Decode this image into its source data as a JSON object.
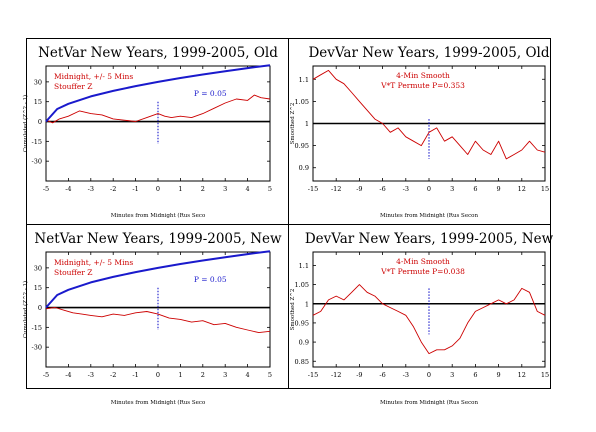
{
  "chart_data": [
    {
      "type": "line",
      "title": "NetVar New Years, 1999-2005, Old",
      "xlabel": "Minutes from Midnight (Rus Seco",
      "ylabel": "Cumulated (Z^2 - 1)",
      "xlim": [
        -5,
        5
      ],
      "ylim": [
        -45,
        42
      ],
      "xticks": [
        -5,
        -4,
        -3,
        -2,
        -1,
        0,
        1,
        2,
        3,
        4,
        5
      ],
      "xtick_labels": [
        "-5",
        "-4",
        "-3",
        "-2",
        "-1",
        "0",
        "1",
        "2",
        "3",
        "4",
        "5"
      ],
      "yticks": [
        30,
        15,
        0,
        -15,
        -30
      ],
      "ytick_labels": [
        "30",
        "15",
        "0",
        "-15",
        "-30"
      ],
      "annotations": [
        "Midnight, +/- 5 Mins",
        "Stouffer Z"
      ],
      "p_label": "P = 0.05",
      "reference_line": 0,
      "marker_x": 0,
      "marker_range": [
        -17,
        15
      ],
      "series": [
        {
          "color": "#cc0000",
          "x": [
            -5,
            -4.7,
            -4.4,
            -4,
            -3.5,
            -3,
            -2.5,
            -2,
            -1.5,
            -1,
            -0.5,
            0,
            0.3,
            0.6,
            1,
            1.5,
            2,
            2.5,
            3,
            3.5,
            4,
            4.3,
            4.6,
            5
          ],
          "y": [
            1,
            -1,
            2,
            4,
            8,
            6,
            5,
            2,
            1,
            0,
            3,
            6,
            4,
            3,
            4,
            3,
            6,
            10,
            14,
            17,
            16,
            20,
            18,
            17
          ]
        },
        {
          "color": "#1a1acc",
          "x": [
            -5,
            -4.5,
            -4,
            -3,
            -2,
            -1,
            0,
            1,
            2,
            3,
            4,
            5
          ],
          "y": [
            0,
            9.5,
            13.4,
            19,
            23.2,
            26.8,
            30,
            32.9,
            35.6,
            38.1,
            40.4,
            42.5
          ]
        }
      ]
    },
    {
      "type": "line",
      "title": "DevVar New Years, 1999-2005, Old",
      "xlabel": "Minutes from Midnight (Rus Secon",
      "ylabel": "Smoothed Z^2",
      "xlim": [
        -15,
        15
      ],
      "ylim": [
        0.87,
        1.13
      ],
      "xticks": [
        -15,
        -12,
        -9,
        -6,
        -3,
        0,
        3,
        6,
        9,
        12,
        15
      ],
      "xtick_labels": [
        "-15",
        "-12",
        "-9",
        "-6",
        "-3",
        "0",
        "3",
        "6",
        "9",
        "12",
        "15"
      ],
      "yticks": [
        1.1,
        1.05,
        1,
        0.95,
        0.9
      ],
      "ytick_labels": [
        "1.1",
        "1.05",
        "1",
        "0.95",
        "0.9"
      ],
      "annotations": [
        "4-Min Smooth",
        "V*T Permute P=0.353"
      ],
      "reference_line": 1,
      "marker_x": 0,
      "marker_range": [
        0.92,
        1.01
      ],
      "series": [
        {
          "color": "#cc0000",
          "x": [
            -15,
            -14,
            -13,
            -12,
            -11,
            -10,
            -9,
            -8,
            -7,
            -6,
            -5,
            -4,
            -3,
            -2,
            -1,
            0,
            1,
            2,
            3,
            4,
            5,
            6,
            7,
            8,
            9,
            10,
            11,
            12,
            13,
            14,
            15
          ],
          "y": [
            1.1,
            1.11,
            1.12,
            1.1,
            1.09,
            1.07,
            1.05,
            1.03,
            1.01,
            1.0,
            0.98,
            0.99,
            0.97,
            0.96,
            0.95,
            0.98,
            0.99,
            0.96,
            0.97,
            0.95,
            0.93,
            0.96,
            0.94,
            0.93,
            0.96,
            0.92,
            0.93,
            0.94,
            0.96,
            0.94,
            0.935
          ]
        }
      ]
    },
    {
      "type": "line",
      "title": "NetVar New Years, 1999-2005, New",
      "xlabel": "Minutes from Midnight (Rus Seco",
      "ylabel": "Cumulated (Z^2 - 1)",
      "xlim": [
        -5,
        5
      ],
      "ylim": [
        -45,
        42
      ],
      "xticks": [
        -5,
        -4,
        -3,
        -2,
        -1,
        0,
        1,
        2,
        3,
        4,
        5
      ],
      "xtick_labels": [
        "-5",
        "-4",
        "-3",
        "-2",
        "-1",
        "0",
        "1",
        "2",
        "3",
        "4",
        "5"
      ],
      "yticks": [
        30,
        15,
        0,
        -15,
        -30
      ],
      "ytick_labels": [
        "30",
        "15",
        "0",
        "-15",
        "-30"
      ],
      "annotations": [
        "Midnight, +/- 5 Mins",
        "Stouffer Z"
      ],
      "p_label": "P = 0.05",
      "reference_line": 0,
      "marker_x": 0,
      "marker_range": [
        -17,
        15
      ],
      "series": [
        {
          "color": "#cc0000",
          "x": [
            -5,
            -4.6,
            -4.2,
            -3.8,
            -3.4,
            -3,
            -2.5,
            -2,
            -1.5,
            -1,
            -0.5,
            0,
            0.5,
            1,
            1.5,
            2,
            2.5,
            3,
            3.5,
            4,
            4.5,
            5
          ],
          "y": [
            -1,
            0,
            -2,
            -4,
            -5,
            -6,
            -7,
            -5,
            -6,
            -4,
            -3,
            -5,
            -8,
            -9,
            -11,
            -10,
            -13,
            -12,
            -15,
            -17,
            -19,
            -18
          ]
        },
        {
          "color": "#1a1acc",
          "x": [
            -5,
            -4.5,
            -4,
            -3,
            -2,
            -1,
            0,
            1,
            2,
            3,
            4,
            5
          ],
          "y": [
            0,
            9.5,
            13.4,
            19,
            23.2,
            26.8,
            30,
            32.9,
            35.6,
            38.1,
            40.4,
            42.5
          ]
        }
      ]
    },
    {
      "type": "line",
      "title": "DevVar New Years, 1999-2005, New",
      "xlabel": "Minutes from Midnight (Rus Secon",
      "ylabel": "Smoothed Z^2",
      "xlim": [
        -15,
        15
      ],
      "ylim": [
        0.835,
        1.135
      ],
      "xticks": [
        -15,
        -12,
        -9,
        -6,
        -3,
        0,
        3,
        6,
        9,
        12,
        15
      ],
      "xtick_labels": [
        "-15",
        "-12",
        "-9",
        "-6",
        "-3",
        "0",
        "3",
        "6",
        "9",
        "12",
        "15"
      ],
      "yticks": [
        1.1,
        1.05,
        1,
        0.95,
        0.9,
        0.85
      ],
      "ytick_labels": [
        "1.1",
        "1.05",
        "1",
        "0.95",
        "0.9",
        "0.85"
      ],
      "annotations": [
        "4-Min Smooth",
        "V*T Permute P=0.038"
      ],
      "reference_line": 1,
      "marker_x": 0,
      "marker_range": [
        0.92,
        1.04
      ],
      "series": [
        {
          "color": "#cc0000",
          "x": [
            -15,
            -14,
            -13,
            -12,
            -11,
            -10,
            -9,
            -8,
            -7,
            -6,
            -5,
            -4,
            -3,
            -2,
            -1,
            0,
            1,
            2,
            3,
            4,
            5,
            6,
            7,
            8,
            9,
            10,
            11,
            12,
            13,
            14,
            15
          ],
          "y": [
            0.97,
            0.98,
            1.01,
            1.02,
            1.01,
            1.03,
            1.05,
            1.03,
            1.02,
            1.0,
            0.99,
            0.98,
            0.97,
            0.94,
            0.9,
            0.87,
            0.88,
            0.88,
            0.89,
            0.91,
            0.95,
            0.98,
            0.99,
            1.0,
            1.01,
            1.0,
            1.01,
            1.04,
            1.03,
            0.98,
            0.97
          ]
        }
      ]
    }
  ]
}
